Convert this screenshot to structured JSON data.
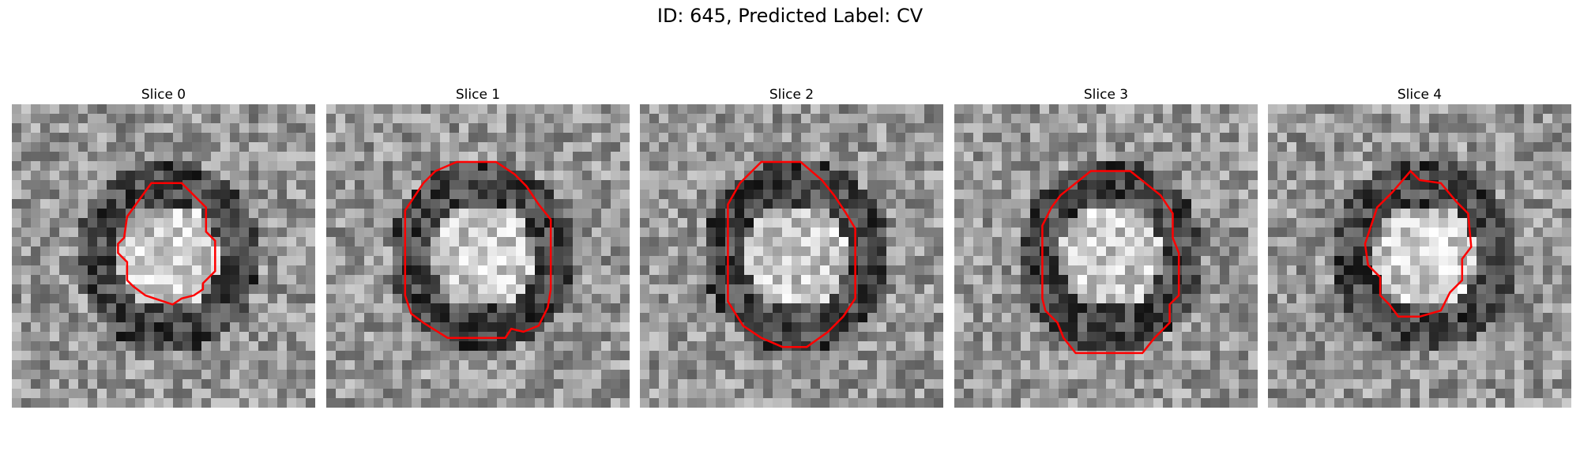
{
  "figure": {
    "title": "ID: 645, Predicted Label: CV"
  },
  "panels": [
    {
      "title": "Slice 0",
      "center_brightness": "bright core",
      "contour_points": [
        [
          0.46,
          0.26
        ],
        [
          0.56,
          0.26
        ],
        [
          0.64,
          0.34
        ],
        [
          0.64,
          0.42
        ],
        [
          0.67,
          0.45
        ],
        [
          0.67,
          0.55
        ],
        [
          0.63,
          0.59
        ],
        [
          0.63,
          0.61
        ],
        [
          0.6,
          0.63
        ],
        [
          0.56,
          0.64
        ],
        [
          0.53,
          0.66
        ],
        [
          0.47,
          0.64
        ],
        [
          0.44,
          0.63
        ],
        [
          0.4,
          0.6
        ],
        [
          0.38,
          0.58
        ],
        [
          0.38,
          0.52
        ],
        [
          0.35,
          0.49
        ],
        [
          0.35,
          0.46
        ],
        [
          0.37,
          0.44
        ],
        [
          0.38,
          0.37
        ]
      ]
    },
    {
      "title": "Slice 1",
      "center_brightness": "bright core",
      "contour_points": [
        [
          0.43,
          0.19
        ],
        [
          0.56,
          0.19
        ],
        [
          0.62,
          0.23
        ],
        [
          0.66,
          0.27
        ],
        [
          0.7,
          0.33
        ],
        [
          0.74,
          0.38
        ],
        [
          0.74,
          0.57
        ],
        [
          0.74,
          0.61
        ],
        [
          0.73,
          0.67
        ],
        [
          0.7,
          0.73
        ],
        [
          0.65,
          0.75
        ],
        [
          0.61,
          0.74
        ],
        [
          0.59,
          0.77
        ],
        [
          0.4,
          0.77
        ],
        [
          0.32,
          0.72
        ],
        [
          0.28,
          0.69
        ],
        [
          0.26,
          0.63
        ],
        [
          0.26,
          0.35
        ],
        [
          0.28,
          0.32
        ],
        [
          0.32,
          0.26
        ],
        [
          0.36,
          0.22
        ]
      ]
    },
    {
      "title": "Slice 2",
      "center_brightness": "bright core",
      "contour_points": [
        [
          0.4,
          0.19
        ],
        [
          0.53,
          0.19
        ],
        [
          0.6,
          0.25
        ],
        [
          0.64,
          0.3
        ],
        [
          0.68,
          0.36
        ],
        [
          0.71,
          0.41
        ],
        [
          0.71,
          0.64
        ],
        [
          0.67,
          0.7
        ],
        [
          0.62,
          0.75
        ],
        [
          0.55,
          0.8
        ],
        [
          0.47,
          0.8
        ],
        [
          0.4,
          0.77
        ],
        [
          0.34,
          0.73
        ],
        [
          0.29,
          0.65
        ],
        [
          0.29,
          0.6
        ],
        [
          0.29,
          0.33
        ],
        [
          0.33,
          0.26
        ]
      ]
    },
    {
      "title": "Slice 3",
      "center_brightness": "bright core",
      "contour_points": [
        [
          0.45,
          0.22
        ],
        [
          0.58,
          0.22
        ],
        [
          0.63,
          0.26
        ],
        [
          0.68,
          0.3
        ],
        [
          0.72,
          0.36
        ],
        [
          0.72,
          0.44
        ],
        [
          0.74,
          0.49
        ],
        [
          0.74,
          0.63
        ],
        [
          0.71,
          0.66
        ],
        [
          0.71,
          0.72
        ],
        [
          0.66,
          0.77
        ],
        [
          0.62,
          0.82
        ],
        [
          0.4,
          0.82
        ],
        [
          0.36,
          0.77
        ],
        [
          0.34,
          0.72
        ],
        [
          0.3,
          0.68
        ],
        [
          0.29,
          0.64
        ],
        [
          0.29,
          0.4
        ],
        [
          0.32,
          0.34
        ],
        [
          0.35,
          0.3
        ]
      ]
    },
    {
      "title": "Slice 4",
      "center_brightness": "bright core",
      "contour_points": [
        [
          0.47,
          0.22
        ],
        [
          0.5,
          0.25
        ],
        [
          0.57,
          0.26
        ],
        [
          0.62,
          0.32
        ],
        [
          0.66,
          0.36
        ],
        [
          0.67,
          0.47
        ],
        [
          0.64,
          0.51
        ],
        [
          0.64,
          0.58
        ],
        [
          0.6,
          0.62
        ],
        [
          0.57,
          0.68
        ],
        [
          0.5,
          0.7
        ],
        [
          0.43,
          0.7
        ],
        [
          0.4,
          0.66
        ],
        [
          0.37,
          0.63
        ],
        [
          0.37,
          0.57
        ],
        [
          0.33,
          0.53
        ],
        [
          0.32,
          0.46
        ],
        [
          0.34,
          0.4
        ],
        [
          0.36,
          0.34
        ],
        [
          0.41,
          0.29
        ]
      ]
    }
  ],
  "colors": {
    "contour": "#ff0000"
  }
}
